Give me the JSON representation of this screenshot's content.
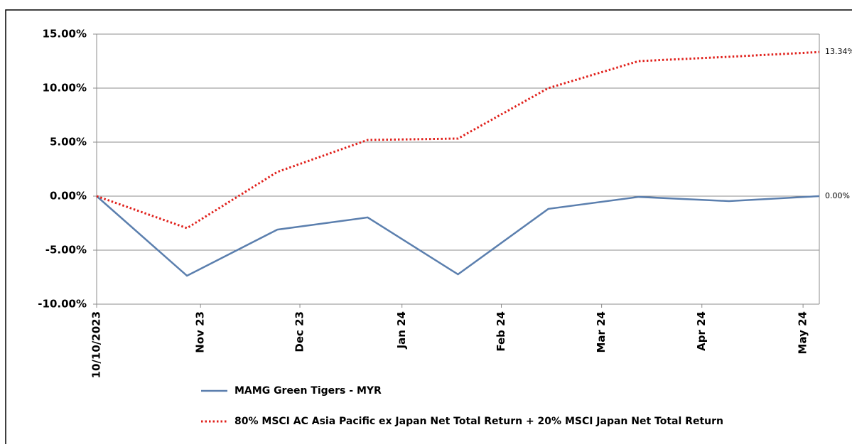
{
  "chart_data": {
    "type": "line",
    "x": [
      0,
      1,
      2,
      3,
      4,
      5,
      6,
      7,
      8
    ],
    "xlim": [
      0,
      8
    ],
    "xticks": [
      {
        "value": 0,
        "label": "10/10/2023"
      },
      {
        "value": 1.15,
        "label": "Nov 23"
      },
      {
        "value": 2.25,
        "label": "Dec 23"
      },
      {
        "value": 3.38,
        "label": "Jan 24"
      },
      {
        "value": 4.48,
        "label": "Feb 24"
      },
      {
        "value": 5.59,
        "label": "Mar 24"
      },
      {
        "value": 6.7,
        "label": "Apr 24"
      },
      {
        "value": 7.82,
        "label": "May 24"
      }
    ],
    "ylim": [
      -10,
      15
    ],
    "yticks": [
      {
        "value": -10,
        "label": "-10.00%"
      },
      {
        "value": -5,
        "label": "-5.00%"
      },
      {
        "value": 0,
        "label": "0.00%"
      },
      {
        "value": 5,
        "label": "5.00%"
      },
      {
        "value": 10,
        "label": "10.00%"
      },
      {
        "value": 15,
        "label": "15.00%"
      }
    ],
    "grid": true,
    "legend": "bottom",
    "series": [
      {
        "name": "MAMG Green Tigers - MYR",
        "color": "#5b7fae",
        "style": "solid",
        "values": [
          0,
          -7.37,
          -3.1,
          -1.97,
          -7.24,
          -1.18,
          -0.07,
          -0.46,
          0.0
        ],
        "value_labels": [
          null,
          null,
          null,
          null,
          null,
          null,
          null,
          null,
          "0.00%"
        ]
      },
      {
        "name": "80% MSCI AC Asia Pacific ex Japan Net Total Return + 20% MSCI Japan Net Total Return",
        "color": "#e0201b",
        "style": "dotted",
        "values": [
          0,
          -2.96,
          2.24,
          5.2,
          5.33,
          10.0,
          12.5,
          12.9,
          13.34
        ],
        "value_labels": [
          null,
          null,
          null,
          null,
          null,
          null,
          null,
          null,
          "13.34%"
        ]
      }
    ]
  }
}
